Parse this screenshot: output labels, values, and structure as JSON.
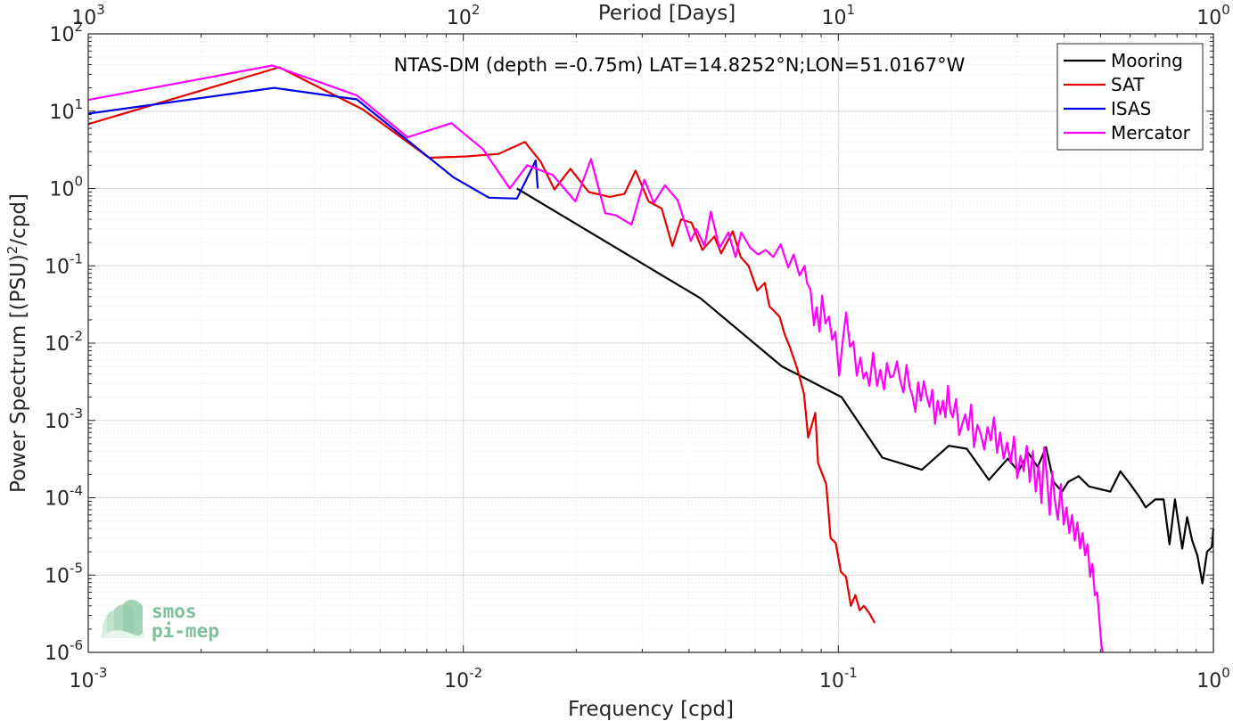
{
  "chart_data": {
    "type": "line",
    "title": "NTAS-DM (depth =-0.75m) LAT=14.8252°N;LON=51.0167°W",
    "xlabel": "Frequency [cpd]",
    "ylabel_main": "Power Spectrum [(PSU)",
    "ylabel_sup": "2",
    "ylabel_tail": "/cpd]",
    "top_xlabel": "Period [Days]",
    "xscale": "log",
    "yscale": "log",
    "xlim": [
      0.001,
      1
    ],
    "ylim": [
      1e-06,
      100
    ],
    "grid": true,
    "legend_position": "top-right",
    "x_ticks": [
      {
        "value": 0.001,
        "base": "10",
        "exp": "-3"
      },
      {
        "value": 0.01,
        "base": "10",
        "exp": "-2"
      },
      {
        "value": 0.1,
        "base": "10",
        "exp": "-1"
      },
      {
        "value": 1,
        "base": "10",
        "exp": "0"
      }
    ],
    "y_ticks": [
      {
        "value": 100,
        "base": "10",
        "exp": "2"
      },
      {
        "value": 10,
        "base": "10",
        "exp": "1"
      },
      {
        "value": 1,
        "base": "10",
        "exp": "0"
      },
      {
        "value": 0.1,
        "base": "10",
        "exp": "-1"
      },
      {
        "value": 0.01,
        "base": "10",
        "exp": "-2"
      },
      {
        "value": 0.001,
        "base": "10",
        "exp": "-3"
      },
      {
        "value": 0.0001,
        "base": "10",
        "exp": "-4"
      },
      {
        "value": 1e-05,
        "base": "10",
        "exp": "-5"
      },
      {
        "value": 1e-06,
        "base": "10",
        "exp": "-6"
      }
    ],
    "top_ticks": [
      {
        "value": 0.001,
        "base": "10",
        "exp": "3"
      },
      {
        "value": 0.01,
        "base": "10",
        "exp": "2"
      },
      {
        "value": 0.1,
        "base": "10",
        "exp": "1"
      },
      {
        "value": 1,
        "base": "10",
        "exp": "0"
      }
    ],
    "series": [
      {
        "name": "Mooring",
        "color": "#000000",
        "points": [
          [
            0.0139,
            1.0
          ],
          [
            0.0429,
            0.038
          ],
          [
            0.0707,
            0.005
          ],
          [
            0.102,
            0.002
          ],
          [
            0.131,
            0.00033
          ],
          [
            0.167,
            0.00023
          ],
          [
            0.197,
            0.00047
          ],
          [
            0.22,
            0.00043
          ],
          [
            0.252,
            0.00017
          ],
          [
            0.283,
            0.00032
          ],
          [
            0.302,
            0.00022
          ],
          [
            0.321,
            0.00038
          ],
          [
            0.34,
            0.00025
          ],
          [
            0.358,
            0.00045
          ],
          [
            0.375,
            0.00016
          ],
          [
            0.395,
            0.00012
          ],
          [
            0.41,
            0.00016
          ],
          [
            0.437,
            0.00019
          ],
          [
            0.466,
            0.00014
          ],
          [
            0.496,
            0.00013
          ],
          [
            0.531,
            0.00012
          ],
          [
            0.565,
            0.00022
          ],
          [
            0.6,
            0.00015
          ],
          [
            0.637,
            0.0001
          ],
          [
            0.66,
            7.5e-05
          ],
          [
            0.7,
            9.5e-05
          ],
          [
            0.737,
            9.5e-05
          ],
          [
            0.764,
            2.5e-05
          ],
          [
            0.79,
            9.5e-05
          ],
          [
            0.826,
            2.2e-05
          ],
          [
            0.851,
            5.6e-05
          ],
          [
            0.878,
            2.8e-05
          ],
          [
            0.906,
            1.8e-05
          ],
          [
            0.935,
            7.8e-06
          ],
          [
            0.962,
            2e-05
          ],
          [
            0.99,
            2.3e-05
          ],
          [
            1.0,
            4e-05
          ]
        ]
      },
      {
        "name": "SAT",
        "color": "#e60000",
        "points": [
          [
            0.001,
            6.8
          ],
          [
            0.00323,
            37
          ],
          [
            0.0054,
            10.5
          ],
          [
            0.0081,
            2.5
          ],
          [
            0.0102,
            2.6
          ],
          [
            0.0124,
            2.8
          ],
          [
            0.0146,
            4.0
          ],
          [
            0.0161,
            2.2
          ],
          [
            0.0175,
            0.97
          ],
          [
            0.0193,
            1.8
          ],
          [
            0.0216,
            0.9
          ],
          [
            0.0246,
            0.78
          ],
          [
            0.0269,
            0.85
          ],
          [
            0.0288,
            1.7
          ],
          [
            0.0312,
            0.68
          ],
          [
            0.0338,
            0.55
          ],
          [
            0.0361,
            0.18
          ],
          [
            0.0381,
            0.4
          ],
          [
            0.0406,
            0.36
          ],
          [
            0.0434,
            0.16
          ],
          [
            0.0467,
            0.24
          ],
          [
            0.0487,
            0.145
          ],
          [
            0.0523,
            0.28
          ],
          [
            0.0549,
            0.13
          ],
          [
            0.0576,
            0.1
          ],
          [
            0.0608,
            0.048
          ],
          [
            0.0637,
            0.06
          ],
          [
            0.0655,
            0.03
          ],
          [
            0.0697,
            0.022
          ],
          [
            0.0719,
            0.013
          ],
          [
            0.0742,
            0.009
          ],
          [
            0.0779,
            0.0045
          ],
          [
            0.081,
            0.0022
          ],
          [
            0.0831,
            0.0006
          ],
          [
            0.0868,
            0.00125
          ],
          [
            0.0883,
            0.00028
          ],
          [
            0.0928,
            0.00015
          ],
          [
            0.0954,
            3e-05
          ],
          [
            0.0984,
            2.6e-05
          ],
          [
            0.1016,
            1.1e-05
          ],
          [
            0.1048,
            9.5e-06
          ],
          [
            0.108,
            4e-06
          ],
          [
            0.111,
            5.5e-06
          ],
          [
            0.114,
            3.5e-06
          ],
          [
            0.117,
            4e-06
          ],
          [
            0.121,
            3.2e-06
          ],
          [
            0.125,
            2.4e-06
          ]
        ]
      },
      {
        "name": "ISAS",
        "color": "#0000e6",
        "points": [
          [
            0.001,
            9.3
          ],
          [
            0.00313,
            20
          ],
          [
            0.0052,
            14.2
          ],
          [
            0.0094,
            1.4
          ],
          [
            0.0117,
            0.76
          ],
          [
            0.0139,
            0.74
          ],
          [
            0.0156,
            2.3
          ],
          [
            0.0158,
            1.0
          ]
        ]
      },
      {
        "name": "Mercator",
        "color": "#ff00ff",
        "points": [
          [
            0.001,
            14
          ],
          [
            0.0031,
            39
          ],
          [
            0.0052,
            16
          ],
          [
            0.0071,
            4.6
          ],
          [
            0.0093,
            7.0
          ],
          [
            0.0113,
            3.2
          ],
          [
            0.0133,
            1.0
          ],
          [
            0.0148,
            2.0
          ],
          [
            0.0173,
            1.5
          ],
          [
            0.0199,
            0.68
          ],
          [
            0.0219,
            2.4
          ],
          [
            0.0239,
            0.48
          ],
          [
            0.0255,
            0.45
          ],
          [
            0.0281,
            0.34
          ],
          [
            0.0304,
            1.3
          ],
          [
            0.0322,
            0.65
          ],
          [
            0.0345,
            1.1
          ],
          [
            0.0373,
            0.7
          ],
          [
            0.0404,
            0.21
          ],
          [
            0.0418,
            0.3
          ],
          [
            0.044,
            0.18
          ],
          [
            0.0457,
            0.5
          ],
          [
            0.0482,
            0.17
          ],
          [
            0.0509,
            0.27
          ],
          [
            0.0532,
            0.13
          ],
          [
            0.0551,
            0.27
          ],
          [
            0.0583,
            0.17
          ],
          [
            0.0611,
            0.14
          ],
          [
            0.064,
            0.16
          ],
          [
            0.0671,
            0.13
          ],
          [
            0.0702,
            0.19
          ],
          [
            0.0735,
            0.095
          ],
          [
            0.076,
            0.14
          ],
          [
            0.0788,
            0.075
          ],
          [
            0.0813,
            0.1
          ],
          [
            0.0825,
            0.06
          ],
          [
            0.0843,
            0.049
          ],
          [
            0.0861,
            0.017
          ],
          [
            0.0875,
            0.029
          ],
          [
            0.0891,
            0.014
          ],
          [
            0.0905,
            0.041
          ],
          [
            0.0924,
            0.018
          ],
          [
            0.0944,
            0.022
          ],
          [
            0.0963,
            0.011
          ],
          [
            0.0982,
            0.014
          ],
          [
            0.1005,
            0.0038
          ],
          [
            0.1028,
            0.011
          ],
          [
            0.1049,
            0.025
          ],
          [
            0.1074,
            0.009
          ],
          [
            0.1097,
            0.0105
          ],
          [
            0.112,
            0.0038
          ],
          [
            0.1145,
            0.0065
          ],
          [
            0.1167,
            0.0035
          ],
          [
            0.1187,
            0.0042
          ],
          [
            0.121,
            0.0028
          ],
          [
            0.1238,
            0.0075
          ],
          [
            0.1268,
            0.0028
          ],
          [
            0.1294,
            0.0045
          ],
          [
            0.1324,
            0.0025
          ],
          [
            0.1347,
            0.0055
          ],
          [
            0.1376,
            0.0036
          ],
          [
            0.1404,
            0.0038
          ],
          [
            0.1433,
            0.0058
          ],
          [
            0.1462,
            0.0033
          ],
          [
            0.1491,
            0.0023
          ],
          [
            0.152,
            0.0052
          ],
          [
            0.1548,
            0.0027
          ],
          [
            0.1576,
            0.0021
          ],
          [
            0.1604,
            0.0013
          ],
          [
            0.1632,
            0.0031
          ],
          [
            0.166,
            0.0018
          ],
          [
            0.169,
            0.0032
          ],
          [
            0.172,
            0.0021
          ],
          [
            0.175,
            0.0015
          ],
          [
            0.178,
            0.0025
          ],
          [
            0.181,
            0.0009
          ],
          [
            0.184,
            0.0018
          ],
          [
            0.187,
            0.0012
          ],
          [
            0.19,
            0.0018
          ],
          [
            0.193,
            0.0011
          ],
          [
            0.196,
            0.0028
          ],
          [
            0.199,
            0.0013
          ],
          [
            0.202,
            0.0011
          ],
          [
            0.206,
            0.0019
          ],
          [
            0.21,
            0.00065
          ],
          [
            0.214,
            0.0009
          ],
          [
            0.218,
            0.0012
          ],
          [
            0.222,
            0.00075
          ],
          [
            0.226,
            0.0016
          ],
          [
            0.23,
            0.00045
          ],
          [
            0.235,
            0.00088
          ],
          [
            0.24,
            0.00065
          ],
          [
            0.245,
            0.00042
          ],
          [
            0.25,
            0.00082
          ],
          [
            0.255,
            0.00055
          ],
          [
            0.26,
            0.0011
          ],
          [
            0.265,
            0.00038
          ],
          [
            0.27,
            0.0007
          ],
          [
            0.276,
            0.00032
          ],
          [
            0.282,
            0.00052
          ],
          [
            0.288,
            0.00028
          ],
          [
            0.294,
            0.00062
          ],
          [
            0.3,
            0.00018
          ],
          [
            0.306,
            0.00035
          ],
          [
            0.312,
            0.00022
          ],
          [
            0.318,
            0.00047
          ],
          [
            0.324,
            0.00016
          ],
          [
            0.33,
            0.0004
          ],
          [
            0.336,
            0.00012
          ],
          [
            0.342,
            0.00026
          ],
          [
            0.348,
            8.5e-05
          ],
          [
            0.354,
            0.00045
          ],
          [
            0.36,
            0.00018
          ],
          [
            0.366,
            6e-05
          ],
          [
            0.372,
            0.00022
          ],
          [
            0.378,
            9e-05
          ],
          [
            0.385,
            5.2e-05
          ],
          [
            0.392,
            0.00015
          ],
          [
            0.399,
            4.5e-05
          ],
          [
            0.406,
            7.5e-05
          ],
          [
            0.413,
            3.5e-05
          ],
          [
            0.42,
            6e-05
          ],
          [
            0.427,
            2.8e-05
          ],
          [
            0.434,
            4.8e-05
          ],
          [
            0.441,
            2.2e-05
          ],
          [
            0.448,
            3.5e-05
          ],
          [
            0.455,
            1.8e-05
          ],
          [
            0.462,
            2.5e-05
          ],
          [
            0.469,
            9.5e-06
          ],
          [
            0.476,
            1.4e-05
          ],
          [
            0.483,
            5.5e-06
          ],
          [
            0.49,
            6e-06
          ],
          [
            0.497,
            2.5e-06
          ],
          [
            0.503,
            1.2e-06
          ],
          [
            0.507,
            1e-06
          ]
        ]
      }
    ]
  },
  "logo": {
    "line1": "smos",
    "line2": "pi-mep"
  }
}
